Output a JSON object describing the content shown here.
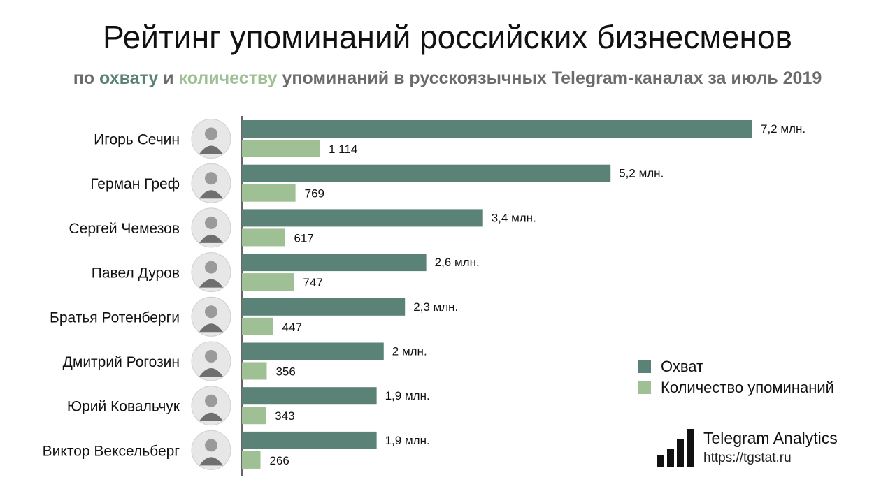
{
  "header": {
    "title": "Рейтинг упоминаний российских бизнесменов",
    "subtitle_pre": "по ",
    "subtitle_reach": "охвату",
    "subtitle_and": " и ",
    "subtitle_count": "количеству",
    "subtitle_post": " упоминаний в русскоязычных Telegram-каналах за июль 2019"
  },
  "colors": {
    "reach": "#5a8276",
    "count": "#9fbf94",
    "axis": "#333333"
  },
  "legend": {
    "reach_label": "Охват",
    "count_label": "Количество упоминаний"
  },
  "brand": {
    "name": "Telegram Analytics",
    "url": "https://tgstat.ru",
    "logo_icon": "bar-chart-logo-icon"
  },
  "chart_data": {
    "type": "bar",
    "orientation": "horizontal",
    "categories": [
      "Игорь Сечин",
      "Герман Греф",
      "Сергей Чемезов",
      "Павел Дуров",
      "Братья Ротенберги",
      "Дмитрий Рогозин",
      "Юрий Ковальчук",
      "Виктор Вексельберг"
    ],
    "avatar_icon": "person-photo-icon",
    "series": [
      {
        "name": "Охват",
        "values": [
          7.2,
          5.2,
          3.4,
          2.6,
          2.3,
          2.0,
          1.9,
          1.9
        ],
        "labels": [
          "7,2 млн.",
          "5,2 млн.",
          "3,4 млн.",
          "2,6 млн.",
          "2,3 млн.",
          "2 млн.",
          "1,9 млн.",
          "1,9 млн."
        ]
      },
      {
        "name": "Количество упоминаний",
        "values": [
          1114,
          769,
          617,
          747,
          447,
          356,
          343,
          266
        ],
        "labels": [
          "1 114",
          "769",
          "617",
          "747",
          "447",
          "356",
          "343",
          "266"
        ]
      }
    ],
    "legend_position": "bottom-right",
    "grid": false
  }
}
